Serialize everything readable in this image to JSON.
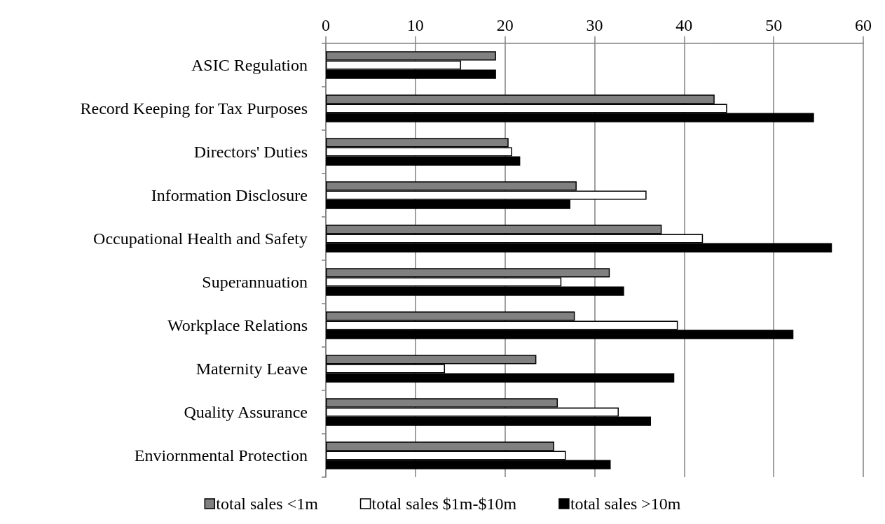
{
  "chart_data": {
    "type": "bar",
    "orientation": "horizontal",
    "categories": [
      "ASIC Regulation",
      "Record Keeping for Tax Purposes",
      "Directors' Duties",
      "Information Disclosure",
      "Occupational Health and Safety",
      "Superannuation",
      "Workplace Relations",
      "Maternity Leave",
      "Quality Assurance",
      "Enviornmental Protection"
    ],
    "series": [
      {
        "name": "total sales <1m",
        "color": "#808080",
        "values": [
          19.0,
          43.4,
          20.4,
          28.0,
          37.5,
          31.7,
          27.8,
          23.5,
          25.9,
          25.5
        ]
      },
      {
        "name": "total sales $1m-$10m",
        "color": "#ffffff",
        "values": [
          15.1,
          44.8,
          20.8,
          35.8,
          42.1,
          26.3,
          39.3,
          13.3,
          32.7,
          26.8
        ]
      },
      {
        "name": "total sales >10m",
        "color": "#000000",
        "values": [
          19.0,
          54.5,
          21.7,
          27.3,
          56.5,
          33.3,
          52.2,
          38.9,
          36.3,
          31.8
        ]
      }
    ],
    "xlim": [
      0,
      60
    ],
    "xticks": [
      0,
      10,
      20,
      30,
      40,
      50,
      60
    ],
    "grid": "x",
    "legend": "bottom"
  }
}
